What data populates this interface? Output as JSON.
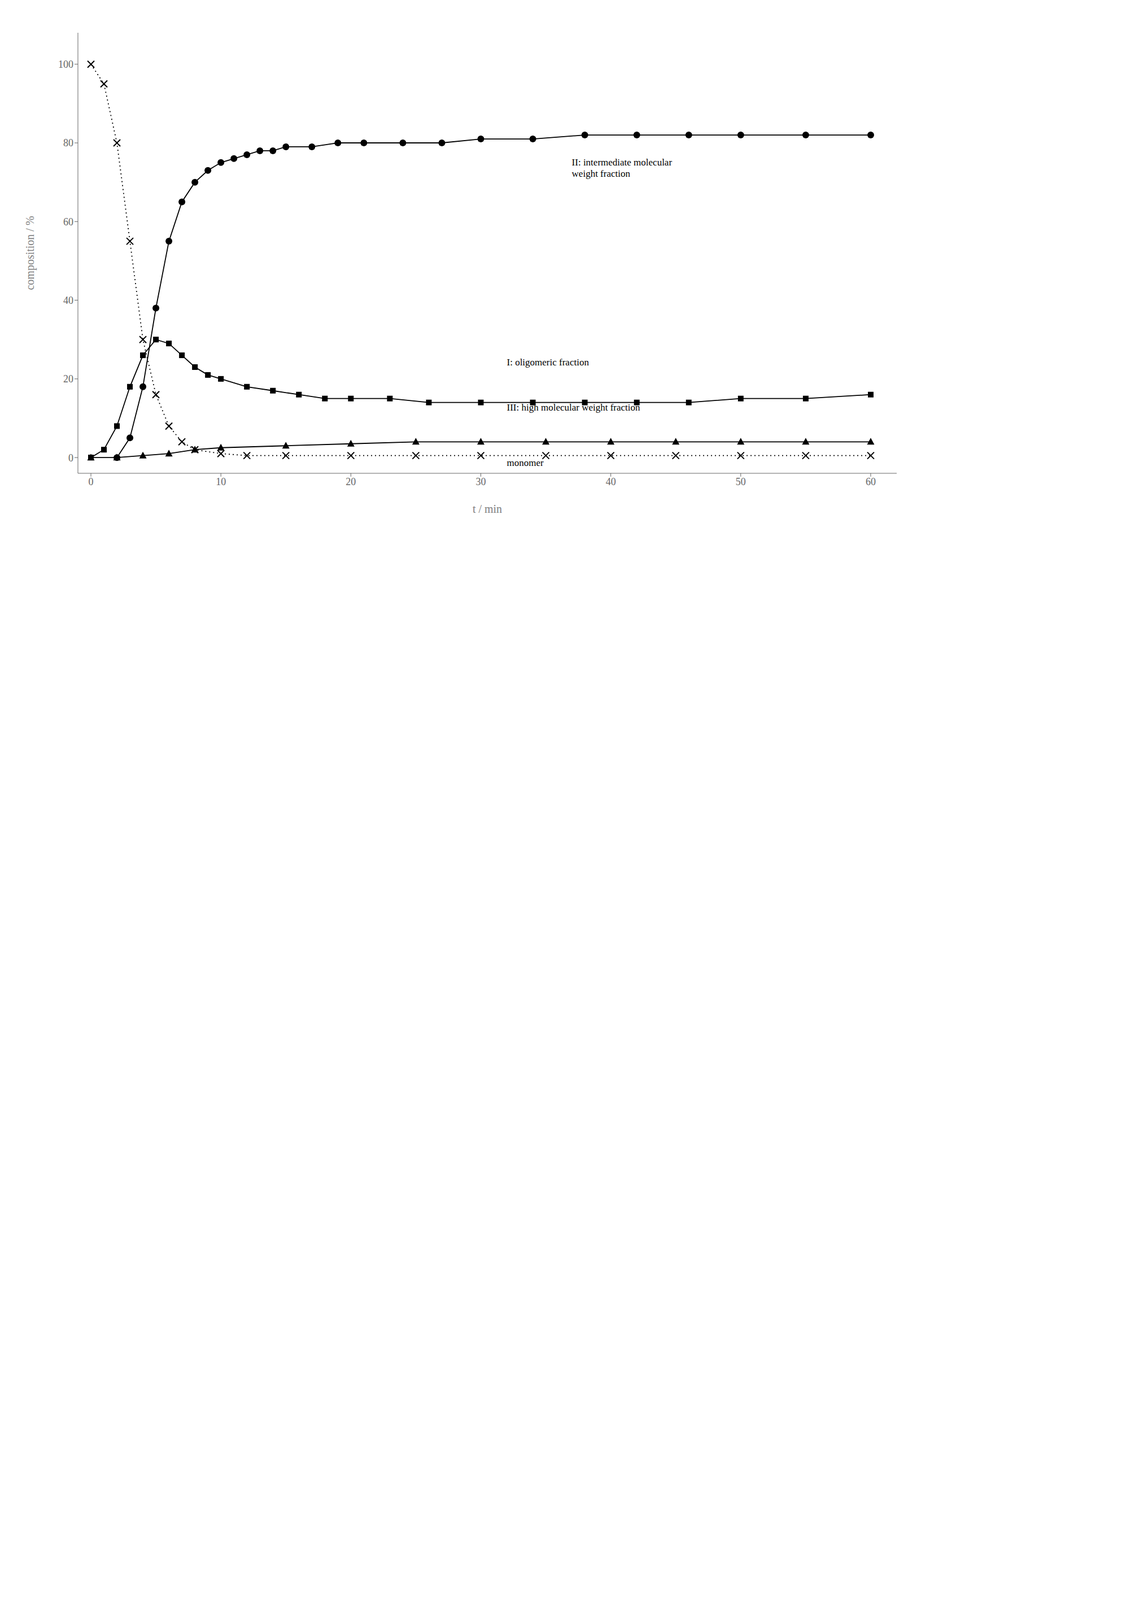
{
  "chart_data": {
    "type": "line",
    "xlabel": "t / min",
    "ylabel": "composition / %",
    "xlim": [
      -1,
      62
    ],
    "ylim": [
      -4,
      108
    ],
    "xticks": [
      0,
      10,
      20,
      30,
      40,
      50,
      60
    ],
    "yticks": [
      0,
      20,
      40,
      60,
      80,
      100
    ],
    "grid": false,
    "series": [
      {
        "color": "#000000",
        "marker": "x",
        "line_style": "dotted",
        "x": [
          0,
          1,
          2,
          3,
          4,
          5,
          6,
          7,
          8,
          10,
          12,
          15,
          20,
          25,
          30,
          35,
          40,
          45,
          50,
          55,
          60
        ],
        "values": [
          100,
          95,
          80,
          55,
          30,
          16,
          8,
          4,
          2,
          1,
          0.5,
          0.5,
          0.5,
          0.5,
          0.5,
          0.5,
          0.5,
          0.5,
          0.5,
          0.5,
          0.5
        ]
      },
      {
        "color": "#000000",
        "marker": "circle",
        "line_style": "solid",
        "x": [
          2,
          3,
          4,
          5,
          6,
          7,
          8,
          9,
          10,
          11,
          12,
          13,
          14,
          15,
          17,
          19,
          21,
          24,
          27,
          30,
          34,
          38,
          42,
          46,
          50,
          55,
          60
        ],
        "values": [
          0,
          5,
          18,
          38,
          55,
          65,
          70,
          73,
          75,
          76,
          77,
          78,
          78,
          79,
          79,
          80,
          80,
          80,
          80,
          81,
          81,
          82,
          82,
          82,
          82,
          82,
          82
        ]
      },
      {
        "color": "#000000",
        "marker": "square",
        "line_style": "solid",
        "x": [
          0,
          1,
          2,
          3,
          4,
          5,
          6,
          7,
          8,
          9,
          10,
          12,
          14,
          16,
          18,
          20,
          23,
          26,
          30,
          34,
          38,
          42,
          46,
          50,
          55,
          60
        ],
        "values": [
          0,
          2,
          8,
          18,
          26,
          30,
          29,
          26,
          23,
          21,
          20,
          18,
          17,
          16,
          15,
          15,
          15,
          14,
          14,
          14,
          14,
          14,
          14,
          15,
          15,
          16
        ]
      },
      {
        "color": "#000000",
        "marker": "triangle",
        "line_style": "solid",
        "x": [
          0,
          2,
          4,
          6,
          8,
          10,
          15,
          20,
          25,
          30,
          35,
          40,
          45,
          50,
          55,
          60
        ],
        "values": [
          0,
          0,
          0.5,
          1,
          2,
          2.5,
          3,
          3.5,
          4,
          4,
          4,
          4,
          4,
          4,
          4,
          4
        ]
      }
    ],
    "annotations": [
      {
        "text": "II: intermediate molecular\nweight fraction",
        "x": 37,
        "y": 71
      },
      {
        "text": "I: oligomeric fraction",
        "x": 32,
        "y": 23
      },
      {
        "text": "III: high molecular weight fraction",
        "x": 32,
        "y": 11.5
      },
      {
        "text": "monomer",
        "x": 32,
        "y": -2.5
      }
    ]
  }
}
